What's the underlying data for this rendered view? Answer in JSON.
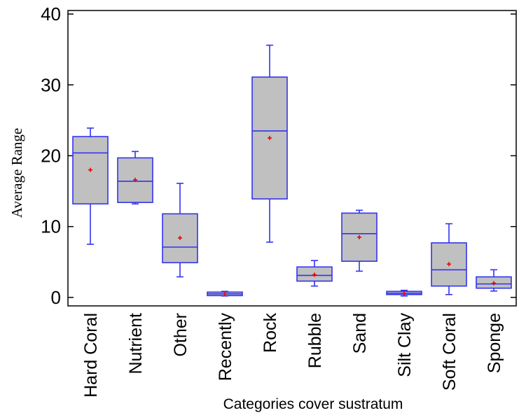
{
  "chart_data": {
    "type": "boxplot",
    "xlabel": "Categories cover sustratum",
    "ylabel": "Average Range",
    "ylim": [
      -1.2,
      40.5
    ],
    "yticks": [
      0,
      10,
      20,
      30,
      40
    ],
    "grid": false,
    "colors": {
      "box_fill": "#c0c0c0",
      "box_stroke": "#3333ee",
      "mean_marker": "#ee0000",
      "axis": "#000000"
    },
    "categories": [
      "Hard Coral",
      "Nutrient",
      "Other",
      "Recently",
      "Rock",
      "Rubble",
      "Sand",
      "Silt Clay",
      "Soft Coral",
      "Sponge"
    ],
    "boxes": [
      {
        "category": "Hard Coral",
        "min": 7.5,
        "q1": 13.2,
        "median": 20.4,
        "q3": 22.7,
        "max": 23.9,
        "mean": 18.0
      },
      {
        "category": "Nutrient",
        "min": 13.2,
        "q1": 13.4,
        "median": 16.4,
        "q3": 19.7,
        "max": 20.6,
        "mean": 16.6
      },
      {
        "category": "Other",
        "min": 2.9,
        "q1": 4.9,
        "median": 7.1,
        "q3": 11.8,
        "max": 16.1,
        "mean": 8.4
      },
      {
        "category": "Recently",
        "min": 0.2,
        "q1": 0.25,
        "median": 0.5,
        "q3": 0.75,
        "max": 0.85,
        "mean": 0.5
      },
      {
        "category": "Rock",
        "min": 7.8,
        "q1": 13.9,
        "median": 23.5,
        "q3": 31.1,
        "max": 35.6,
        "mean": 22.5
      },
      {
        "category": "Rubble",
        "min": 1.6,
        "q1": 2.3,
        "median": 3.1,
        "q3": 4.3,
        "max": 5.2,
        "mean": 3.2
      },
      {
        "category": "Sand",
        "min": 3.7,
        "q1": 5.1,
        "median": 9.0,
        "q3": 11.9,
        "max": 12.3,
        "mean": 8.5
      },
      {
        "category": "Silt Clay",
        "min": 0.2,
        "q1": 0.4,
        "median": 0.6,
        "q3": 0.85,
        "max": 1.0,
        "mean": 0.6
      },
      {
        "category": "Soft Coral",
        "min": 0.4,
        "q1": 1.6,
        "median": 3.9,
        "q3": 7.7,
        "max": 10.4,
        "mean": 4.7
      },
      {
        "category": "Sponge",
        "min": 0.9,
        "q1": 1.3,
        "median": 1.9,
        "q3": 2.9,
        "max": 3.9,
        "mean": 2.0
      }
    ]
  }
}
